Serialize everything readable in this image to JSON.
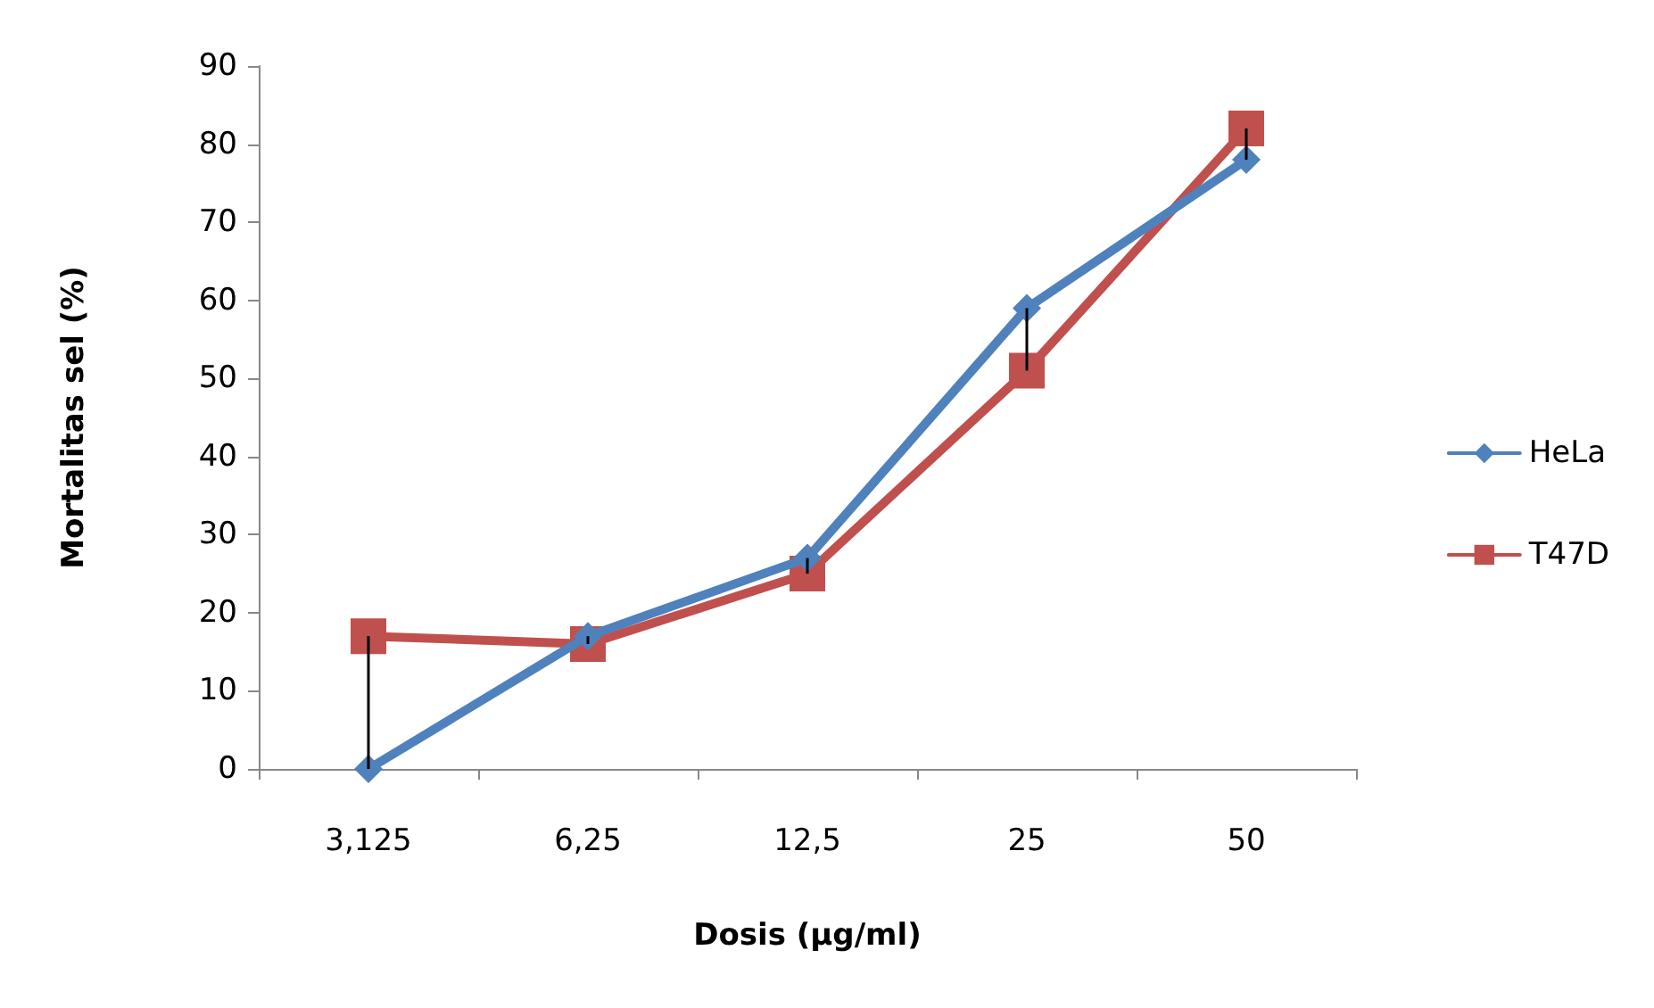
{
  "chart_data": {
    "type": "line",
    "xlabel": "Dosis (µg/ml)",
    "ylabel": "Mortalitas sel (%)",
    "categories": [
      "3,125",
      "6,25",
      "12,5",
      "25",
      "50"
    ],
    "series": [
      {
        "name": "HeLa",
        "color": "#4f81bd",
        "marker": "diamond",
        "values": [
          0,
          17,
          27,
          59,
          78
        ]
      },
      {
        "name": "T47D",
        "color": "#c0504d",
        "marker": "square",
        "values": [
          17,
          16,
          25,
          51,
          82
        ],
        "errors": [
          [
            0,
            17
          ],
          [
            16,
            17
          ],
          [
            25,
            27
          ],
          [
            51,
            59
          ],
          [
            78,
            82
          ]
        ]
      }
    ],
    "ylim": [
      0,
      90
    ],
    "yticks": [
      0,
      10,
      20,
      30,
      40,
      50,
      60,
      70,
      80,
      90
    ],
    "grid": false,
    "legend": "right"
  }
}
